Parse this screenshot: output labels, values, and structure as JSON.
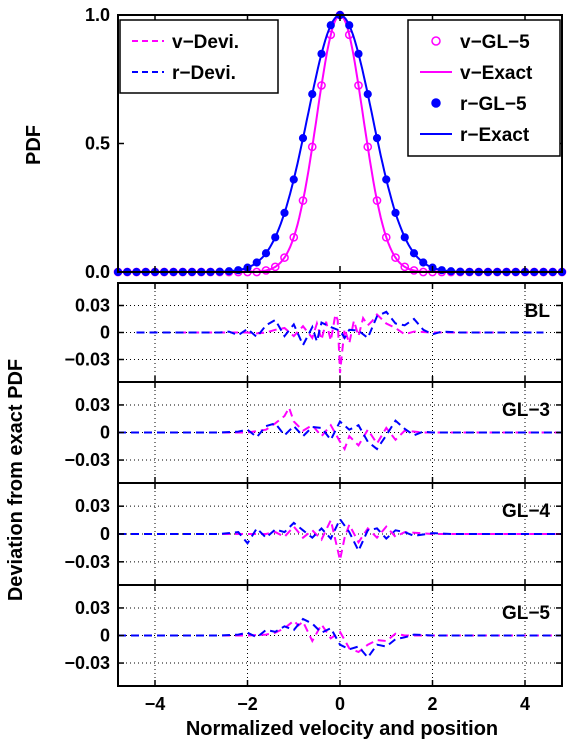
{
  "figure": {
    "xlabel": "Normalized velocity and position",
    "ylabel_top": "PDF",
    "ylabel_bottom": "Deviation from exact PDF"
  },
  "colors": {
    "v": "#ff00ff",
    "r": "#0000ff",
    "axis": "#000000"
  },
  "chart_data": [
    {
      "type": "line",
      "panel": "pdf",
      "xlim": [
        -4.8,
        4.8
      ],
      "ylim": [
        0,
        1
      ],
      "xticks": [
        -4,
        -2,
        0,
        2,
        4
      ],
      "yticks": [
        0,
        0.5,
        1
      ],
      "ytick_labels": [
        "0.0",
        "0.5",
        "1.0"
      ],
      "ylabel": "PDF",
      "grid": false,
      "series": [
        {
          "name": "v−GL−5",
          "style": "markers-open-circle",
          "color": "#ff00ff",
          "sigma": 0.5,
          "x": [
            -4.8,
            -4.6,
            -4.4,
            -4.2,
            -4.0,
            -3.8,
            -3.6,
            -3.4,
            -3.2,
            -3.0,
            -2.8,
            -2.6,
            -2.4,
            -2.2,
            -2.0,
            -1.8,
            -1.6,
            -1.4,
            -1.2,
            -1.0,
            -0.8,
            -0.6,
            -0.4,
            -0.2,
            0.0,
            0.2,
            0.4,
            0.6,
            0.8,
            1.0,
            1.2,
            1.4,
            1.6,
            1.8,
            2.0,
            2.2,
            2.4,
            2.6,
            2.8,
            3.0,
            3.2,
            3.4,
            3.6,
            3.8,
            4.0,
            4.2,
            4.4,
            4.6,
            4.8
          ],
          "y": [
            0,
            0,
            0,
            0,
            0,
            0,
            0,
            0,
            0,
            0,
            0,
            0,
            0,
            0,
            0,
            0,
            0.006,
            0.02,
            0.056,
            0.135,
            0.278,
            0.487,
            0.726,
            0.923,
            1.0,
            0.923,
            0.726,
            0.487,
            0.278,
            0.135,
            0.056,
            0.02,
            0.006,
            0,
            0,
            0,
            0,
            0,
            0,
            0,
            0,
            0,
            0,
            0,
            0,
            0,
            0,
            0,
            0
          ]
        },
        {
          "name": "v−Exact",
          "style": "solid",
          "color": "#ff00ff",
          "sigma": 0.5
        },
        {
          "name": "r−GL−5",
          "style": "markers-filled-circle",
          "color": "#0000ff",
          "sigma": 0.7,
          "x": [
            -4.8,
            -4.6,
            -4.4,
            -4.2,
            -4.0,
            -3.8,
            -3.6,
            -3.4,
            -3.2,
            -3.0,
            -2.8,
            -2.6,
            -2.4,
            -2.2,
            -2.0,
            -1.8,
            -1.6,
            -1.4,
            -1.2,
            -1.0,
            -0.8,
            -0.6,
            -0.4,
            -0.2,
            0.0,
            0.2,
            0.4,
            0.6,
            0.8,
            1.0,
            1.2,
            1.4,
            1.6,
            1.8,
            2.0,
            2.2,
            2.4,
            2.6,
            2.8,
            3.0,
            3.2,
            3.4,
            3.6,
            3.8,
            4.0,
            4.2,
            4.4,
            4.6,
            4.8
          ],
          "y": [
            0,
            0,
            0,
            0,
            0,
            0,
            0,
            0,
            0,
            0,
            0.0003,
            0.001,
            0.003,
            0.007,
            0.017,
            0.037,
            0.073,
            0.135,
            0.23,
            0.36,
            0.521,
            0.692,
            0.849,
            0.96,
            1.0,
            0.96,
            0.849,
            0.692,
            0.521,
            0.36,
            0.23,
            0.135,
            0.073,
            0.037,
            0.017,
            0.007,
            0.003,
            0.001,
            0.0003,
            0,
            0,
            0,
            0,
            0,
            0,
            0,
            0,
            0,
            0
          ]
        },
        {
          "name": "r−Exact",
          "style": "solid",
          "color": "#0000ff",
          "sigma": 0.7
        },
        {
          "name": "v−Devi.",
          "style": "dashed",
          "color": "#ff00ff",
          "legend_only": true
        },
        {
          "name": "r−Devi.",
          "style": "dashed",
          "color": "#0000ff",
          "legend_only": true
        }
      ]
    },
    {
      "type": "line",
      "panel": "deviation",
      "label": "BL",
      "xlim": [
        -4.8,
        4.8
      ],
      "ylim": [
        -0.055,
        0.055
      ],
      "yticks": [
        0.03,
        0,
        -0.03
      ],
      "ytick_labels": [
        "0.03",
        "0",
        "−0.03"
      ],
      "grid": true,
      "series": [
        {
          "name": "v−Devi.",
          "color": "#ff00ff",
          "x": [
            -3.5,
            -3.0,
            -2.5,
            -2.0,
            -1.8,
            -1.6,
            -1.4,
            -1.2,
            -1.0,
            -0.8,
            -0.6,
            -0.5,
            -0.4,
            -0.3,
            -0.2,
            -0.1,
            -0.05,
            0.0,
            0.05,
            0.1,
            0.2,
            0.3,
            0.4,
            0.5,
            0.6,
            0.7,
            0.8,
            1.0,
            1.2,
            1.4,
            1.6,
            2.0,
            2.5,
            3.0,
            3.5
          ],
          "y": [
            0,
            0,
            0,
            0,
            -0.001,
            0,
            0.003,
            0.005,
            -0.004,
            0.007,
            -0.006,
            0.01,
            -0.008,
            0.012,
            -0.009,
            0.02,
            0.014,
            -0.045,
            -0.02,
            0.004,
            -0.012,
            0.013,
            -0.004,
            0.016,
            0.008,
            0.013,
            0.02,
            0.01,
            0.005,
            -0.002,
            0.001,
            0,
            0,
            0,
            0
          ]
        },
        {
          "name": "r−Devi.",
          "color": "#0000ff",
          "x": [
            -4.4,
            -4.0,
            -3.5,
            -3.0,
            -2.6,
            -2.4,
            -2.2,
            -2.0,
            -1.8,
            -1.6,
            -1.4,
            -1.2,
            -1.0,
            -0.8,
            -0.6,
            -0.5,
            -0.4,
            -0.2,
            0.0,
            0.1,
            0.2,
            0.4,
            0.6,
            0.8,
            1.0,
            1.2,
            1.4,
            1.6,
            1.8,
            2.0,
            2.2,
            2.6,
            3.0,
            3.5,
            4.0,
            4.4
          ],
          "y": [
            0,
            0,
            0,
            0,
            0,
            0.001,
            -0.003,
            0.004,
            -0.005,
            0.008,
            0.014,
            -0.004,
            0.009,
            -0.014,
            0.006,
            -0.01,
            0.011,
            0.006,
            0.002,
            -0.006,
            0.003,
            0.002,
            -0.006,
            0.018,
            0.023,
            0.01,
            0.008,
            0.015,
            0.003,
            -0.002,
            0.001,
            0,
            0,
            0,
            0,
            0
          ]
        }
      ]
    },
    {
      "type": "line",
      "panel": "deviation",
      "label": "GL−3",
      "xlim": [
        -4.8,
        4.8
      ],
      "ylim": [
        -0.055,
        0.055
      ],
      "yticks": [
        0.03,
        0,
        -0.03
      ],
      "ytick_labels": [
        "0.03",
        "0",
        "−0.03"
      ],
      "grid": true,
      "series": [
        {
          "name": "v−Devi.",
          "color": "#ff00ff",
          "x": [
            -4.8,
            -4.0,
            -3.0,
            -2.0,
            -1.6,
            -1.4,
            -1.2,
            -1.1,
            -1.0,
            -0.8,
            -0.6,
            -0.4,
            -0.2,
            0.0,
            0.1,
            0.2,
            0.4,
            0.6,
            0.8,
            1.0,
            1.2,
            1.4,
            1.8,
            2.2,
            3.0,
            4.0,
            4.8
          ],
          "y": [
            0,
            0,
            0,
            0,
            0.003,
            0.01,
            0.018,
            0.027,
            0.012,
            0.002,
            0.008,
            -0.004,
            0.008,
            -0.01,
            -0.018,
            -0.004,
            -0.014,
            0.003,
            -0.012,
            0.005,
            -0.008,
            0.002,
            0,
            0,
            0,
            0,
            0
          ]
        },
        {
          "name": "r−Devi.",
          "color": "#0000ff",
          "x": [
            -4.8,
            -4.0,
            -3.0,
            -2.6,
            -2.2,
            -2.0,
            -1.8,
            -1.6,
            -1.4,
            -1.2,
            -1.0,
            -0.8,
            -0.6,
            -0.4,
            -0.2,
            0.0,
            0.2,
            0.4,
            0.6,
            0.8,
            1.0,
            1.2,
            1.4,
            1.6,
            1.8,
            2.0,
            2.4,
            3.0,
            4.0,
            4.8
          ],
          "y": [
            0,
            0,
            0,
            0,
            0.001,
            0.003,
            -0.005,
            0.007,
            0.01,
            -0.003,
            0.007,
            -0.004,
            0.006,
            0.005,
            -0.008,
            0.012,
            0.003,
            0.008,
            -0.01,
            -0.018,
            -0.003,
            0.013,
            0.004,
            -0.003,
            0.001,
            0,
            0,
            0,
            0,
            0
          ]
        }
      ]
    },
    {
      "type": "line",
      "panel": "deviation",
      "label": "GL−4",
      "xlim": [
        -4.8,
        4.8
      ],
      "ylim": [
        -0.055,
        0.055
      ],
      "yticks": [
        0.03,
        0,
        -0.03
      ],
      "ytick_labels": [
        "0.03",
        "0",
        "−0.03"
      ],
      "grid": true,
      "series": [
        {
          "name": "v−Devi.",
          "color": "#ff00ff",
          "x": [
            -4.8,
            -4.0,
            -3.0,
            -2.0,
            -1.6,
            -1.4,
            -1.2,
            -1.0,
            -0.8,
            -0.6,
            -0.4,
            -0.2,
            0.0,
            0.1,
            0.2,
            0.4,
            0.6,
            0.8,
            1.0,
            1.2,
            1.4,
            2.0,
            3.0,
            4.0,
            4.8
          ],
          "y": [
            0,
            0,
            0,
            0,
            0,
            0.002,
            -0.003,
            0.008,
            -0.004,
            0.004,
            -0.006,
            0.015,
            -0.028,
            -0.004,
            0.01,
            -0.009,
            0.006,
            -0.004,
            0.008,
            -0.003,
            0.002,
            0,
            0,
            0,
            0
          ]
        },
        {
          "name": "r−Devi.",
          "color": "#0000ff",
          "x": [
            -4.8,
            -4.0,
            -3.0,
            -2.6,
            -2.2,
            -2.0,
            -1.8,
            -1.6,
            -1.4,
            -1.2,
            -1.0,
            -0.8,
            -0.6,
            -0.4,
            -0.2,
            0.0,
            0.2,
            0.4,
            0.6,
            0.8,
            1.0,
            1.2,
            1.4,
            1.6,
            2.0,
            2.4,
            3.0,
            4.0,
            4.8
          ],
          "y": [
            0,
            0,
            0,
            0,
            0.002,
            -0.01,
            0.006,
            -0.004,
            0.005,
            0.002,
            0.012,
            0.004,
            -0.004,
            0.006,
            -0.005,
            0.016,
            0.002,
            -0.018,
            0.004,
            0.006,
            -0.005,
            0.004,
            0.002,
            -0.002,
            0.001,
            0,
            0,
            0,
            0
          ]
        }
      ]
    },
    {
      "type": "line",
      "panel": "deviation",
      "label": "GL−5",
      "xlim": [
        -4.8,
        4.8
      ],
      "ylim": [
        -0.055,
        0.055
      ],
      "yticks": [
        0.03,
        0,
        -0.03
      ],
      "ytick_labels": [
        "0.03",
        "0",
        "−0.03"
      ],
      "grid": true,
      "series": [
        {
          "name": "v−Devi.",
          "color": "#ff00ff",
          "x": [
            -4.8,
            -4.0,
            -3.0,
            -2.0,
            -1.6,
            -1.4,
            -1.2,
            -1.0,
            -0.9,
            -0.8,
            -0.6,
            -0.4,
            -0.2,
            0.0,
            0.2,
            0.4,
            0.6,
            0.8,
            1.0,
            1.2,
            1.4,
            2.0,
            3.0,
            4.0,
            4.8
          ],
          "y": [
            0,
            0,
            0,
            0,
            0.001,
            0.003,
            0.008,
            0.016,
            0.011,
            0.015,
            -0.006,
            0.012,
            -0.003,
            0.004,
            -0.014,
            -0.018,
            -0.01,
            -0.005,
            -0.006,
            0.002,
            0,
            0,
            0,
            0,
            0
          ]
        },
        {
          "name": "r−Devi.",
          "color": "#0000ff",
          "x": [
            -4.8,
            -4.0,
            -3.0,
            -2.6,
            -2.2,
            -2.0,
            -1.8,
            -1.6,
            -1.4,
            -1.2,
            -1.0,
            -0.8,
            -0.6,
            -0.4,
            -0.2,
            0.0,
            0.2,
            0.4,
            0.6,
            0.8,
            1.0,
            1.2,
            1.4,
            1.6,
            2.0,
            2.4,
            3.0,
            4.0,
            4.8
          ],
          "y": [
            0,
            0,
            0,
            0,
            0.001,
            0.003,
            -0.002,
            0.006,
            0.004,
            0.01,
            0.006,
            0.018,
            0.013,
            0.003,
            0.008,
            -0.01,
            -0.015,
            -0.012,
            -0.024,
            -0.01,
            -0.012,
            -0.004,
            -0.002,
            0.001,
            0,
            0,
            0,
            0,
            0
          ]
        }
      ]
    }
  ]
}
